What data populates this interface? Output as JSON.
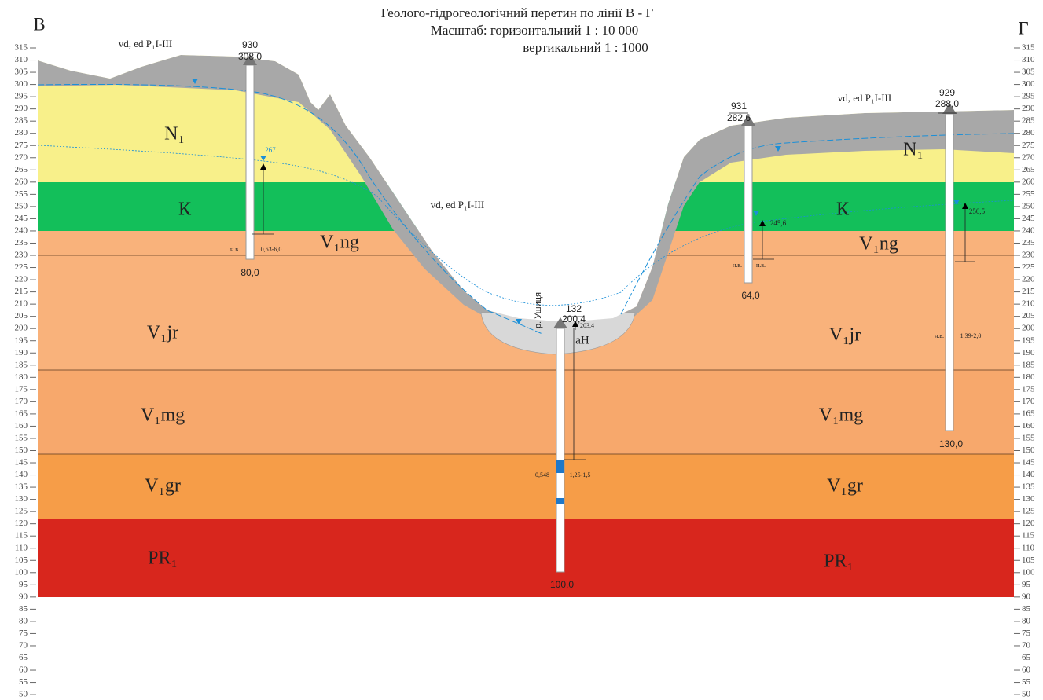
{
  "header": {
    "title": "Геолого-гідрогеологічний перетин по лінії В - Г",
    "scale_horizontal": "Масштаб: горизонтальний 1 : 10 000",
    "scale_vertical": "вертикальний 1 : 1000"
  },
  "section": {
    "start": "В",
    "end": "Г"
  },
  "elevation_ticks": [
    315,
    310,
    305,
    300,
    295,
    290,
    285,
    280,
    275,
    270,
    265,
    260,
    255,
    250,
    245,
    240,
    235,
    230,
    225,
    220,
    215,
    210,
    205,
    200,
    195,
    190,
    185,
    180,
    175,
    170,
    165,
    160,
    155,
    150,
    145,
    140,
    135,
    130,
    125,
    120,
    115,
    110,
    105,
    100,
    95,
    90,
    85,
    80,
    75,
    70,
    65,
    60,
    55,
    50
  ],
  "layers": {
    "left": [
      "N₁",
      "К",
      "V₁ng",
      "V₁jr",
      "V₁mg",
      "V₁gr",
      "PR₁"
    ],
    "right": [
      "N₁",
      "К",
      "V₁ng",
      "V₁jr",
      "V₁mg",
      "V₁gr",
      "PR₁"
    ]
  },
  "cover_labels": [
    "vd, ed P₁I-III",
    "vd, ed P₁I-III",
    "vd, ed P₁I-III"
  ],
  "river": "р. Ушиця",
  "alluvium": "аН",
  "wells": [
    {
      "number": "930",
      "elevation": "308,0",
      "depth": "80,0",
      "water_level": "267",
      "note": "н.в.",
      "interval": "0,63-6,0"
    },
    {
      "number": "132",
      "elevation": "200,4",
      "depth": "100,0",
      "water_level": "203,4",
      "discharge": "0,548",
      "interval": "1,25-1,5"
    },
    {
      "number": "931",
      "elevation": "282,6",
      "depth": "64,0",
      "water_level": "245,6",
      "notes": [
        "н.в.",
        "н.в."
      ]
    },
    {
      "number": "929",
      "elevation": "288,0",
      "depth": "130,0",
      "water_level": "250,5",
      "note": "н.в.",
      "interval": "1,39-2,0"
    }
  ]
}
